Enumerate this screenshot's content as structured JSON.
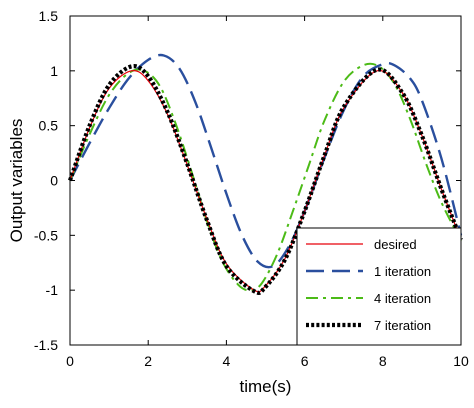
{
  "chart_data": {
    "type": "line",
    "xlabel": "time(s)",
    "ylabel": "Output variables",
    "xlim": [
      0,
      10
    ],
    "ylim": [
      -1.5,
      1.5
    ],
    "xticks": [
      "0",
      "2",
      "4",
      "6",
      "8",
      "10"
    ],
    "yticks": [
      "1.5",
      "1",
      "0.5",
      "0",
      "-0.5",
      "-1",
      "-1.5"
    ],
    "grid": false,
    "legend_position": "bottom-right",
    "series": [
      {
        "name": "desired",
        "color": "#e8000b",
        "style": "solid",
        "x": [
          0,
          0.5,
          1.0,
          1.5708,
          2.0,
          2.5,
          3.0,
          3.5,
          4.0,
          4.7124,
          5.0,
          5.5,
          6.0,
          6.5,
          7.0,
          7.854,
          8.5,
          9.0,
          9.5,
          10.0
        ],
        "y": [
          0,
          0.48,
          0.84,
          1.0,
          0.91,
          0.6,
          0.14,
          -0.35,
          -0.76,
          -1.0,
          -0.96,
          -0.71,
          -0.28,
          0.22,
          0.66,
          1.0,
          0.8,
          0.41,
          -0.08,
          -0.54
        ]
      },
      {
        "name": "1 iteration",
        "color": "#2a4f9e",
        "style": "dashed",
        "x": [
          0,
          0.5,
          1.0,
          1.5,
          2.0,
          2.4,
          2.8,
          3.2,
          3.6,
          4.0,
          4.4,
          4.8,
          5.2,
          5.6,
          6.0,
          6.5,
          7.0,
          7.5,
          8.0,
          8.3,
          8.7,
          9.0,
          9.5,
          10.0
        ],
        "y": [
          0,
          0.34,
          0.66,
          0.93,
          1.1,
          1.14,
          1.02,
          0.72,
          0.31,
          -0.12,
          -0.5,
          -0.74,
          -0.78,
          -0.6,
          -0.28,
          0.2,
          0.64,
          0.95,
          1.06,
          1.05,
          0.93,
          0.73,
          0.2,
          -0.5
        ]
      },
      {
        "name": "4 iteration",
        "color": "#4cbb17",
        "style": "dashdot",
        "x": [
          0,
          0.5,
          1.0,
          1.5,
          1.9,
          2.3,
          2.7,
          3.1,
          3.5,
          3.9,
          4.3,
          4.6,
          4.9,
          5.3,
          5.7,
          6.1,
          6.5,
          7.0,
          7.5,
          7.9,
          8.3,
          8.7,
          9.1,
          9.5,
          10.0
        ],
        "y": [
          0,
          0.42,
          0.78,
          0.98,
          1.0,
          0.86,
          0.52,
          0.09,
          -0.37,
          -0.74,
          -0.95,
          -1.0,
          -0.94,
          -0.67,
          -0.28,
          0.13,
          0.54,
          0.9,
          1.05,
          1.04,
          0.88,
          0.56,
          0.16,
          -0.2,
          -0.55
        ]
      },
      {
        "name": "7 iteration",
        "color": "#000000",
        "style": "dotted",
        "x": [
          0,
          0.5,
          1.0,
          1.5708,
          2.0,
          2.5,
          3.0,
          3.5,
          4.0,
          4.7124,
          5.0,
          5.5,
          6.0,
          6.5,
          7.0,
          7.854,
          8.5,
          9.0,
          9.5,
          10.0
        ],
        "y": [
          0,
          0.5,
          0.87,
          1.04,
          0.95,
          0.62,
          0.15,
          -0.36,
          -0.78,
          -1.01,
          -0.97,
          -0.72,
          -0.28,
          0.22,
          0.67,
          1.01,
          0.8,
          0.41,
          -0.08,
          -0.54
        ]
      }
    ]
  }
}
